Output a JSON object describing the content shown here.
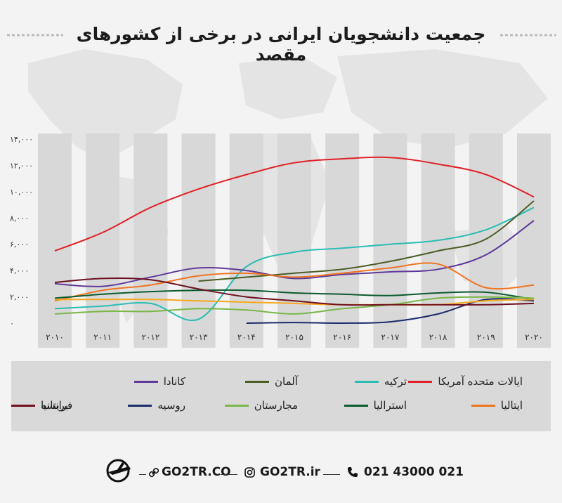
{
  "title": "جمعیت دانشجویان ایرانی در برخی از کشورهای مقصد",
  "chart_data": {
    "type": "line",
    "x": [
      "2010",
      "2011",
      "2012",
      "2013",
      "2014",
      "2015",
      "2016",
      "2017",
      "2018",
      "2019",
      "2020"
    ],
    "y_ticks": [
      "۱۴,۰۰۰",
      "۱۲,۰۰۰",
      "۱۰,۰۰۰",
      "۸,۰۰۰",
      "۶,۰۰۰",
      "۴,۰۰۰",
      "۲,۰۰۰",
      "۰"
    ],
    "x_tick_labels": [
      "۲۰۱۰",
      "۲۰۱۱",
      "۲۰۱۲",
      "۲۰۱۳",
      "۲۰۱۴",
      "۲۰۱۵",
      "۲۰۱۶",
      "۲۰۱۷",
      "۲۰۱۸",
      "۲۰۱۹",
      "۲۰۲۰"
    ],
    "ylim": [
      0,
      14000
    ],
    "legend_position": "bottom",
    "series": [
      {
        "name": "ایالات متحده آمریکا",
        "color": "#e02027",
        "values": [
          5500,
          6900,
          8800,
          10200,
          11300,
          12200,
          12500,
          12600,
          12100,
          11300,
          9600
        ]
      },
      {
        "name": "ترکیه",
        "color": "#2bbdb4",
        "values": [
          1100,
          1300,
          1500,
          300,
          4300,
          5400,
          5700,
          6000,
          6300,
          7100,
          8800
        ]
      },
      {
        "name": "آلمان",
        "color": "#4b5d26",
        "values": [
          null,
          null,
          null,
          3200,
          3500,
          3800,
          4100,
          4700,
          5500,
          6400,
          9300
        ]
      },
      {
        "name": "کانادا",
        "color": "#5f3a9b",
        "values": [
          3000,
          2800,
          3500,
          4200,
          4000,
          3400,
          3700,
          3900,
          4100,
          5200,
          7800
        ]
      },
      {
        "name": "ایتالیا",
        "color": "#f07420",
        "values": [
          1700,
          2500,
          2900,
          3600,
          3800,
          3500,
          3800,
          4200,
          4500,
          2700,
          2900
        ]
      },
      {
        "name": "استرالیا",
        "color": "#0c5b2f",
        "values": [
          1900,
          2200,
          2400,
          2500,
          2500,
          2300,
          2200,
          2100,
          2300,
          2350,
          1800
        ]
      },
      {
        "name": "مجارستان",
        "color": "#7ab648",
        "values": [
          700,
          900,
          900,
          1100,
          1000,
          700,
          1100,
          1400,
          1900,
          2000,
          1900
        ]
      },
      {
        "name": "روسیه",
        "color": "#1b2b6b",
        "values": [
          null,
          null,
          null,
          null,
          0,
          50,
          0,
          100,
          700,
          1800,
          1700
        ]
      },
      {
        "name": "فرانسه",
        "color": "#f6a81c",
        "values": [
          1800,
          1800,
          1800,
          1700,
          1600,
          1500,
          1400,
          1400,
          1400,
          1700,
          1800
        ]
      },
      {
        "name": "بریتانیا",
        "color": "#6e1020",
        "values": [
          3100,
          3400,
          3300,
          2600,
          2000,
          1700,
          1400,
          1400,
          1400,
          1400,
          1500
        ]
      }
    ]
  },
  "footer": {
    "site": "GO2TR.CO",
    "instagram": "GO2TR.ir",
    "phone": "021 43000 021"
  },
  "icons": {
    "logo": "plane-logo-icon",
    "link": "link-icon",
    "instagram": "instagram-icon",
    "phone": "phone-icon"
  }
}
